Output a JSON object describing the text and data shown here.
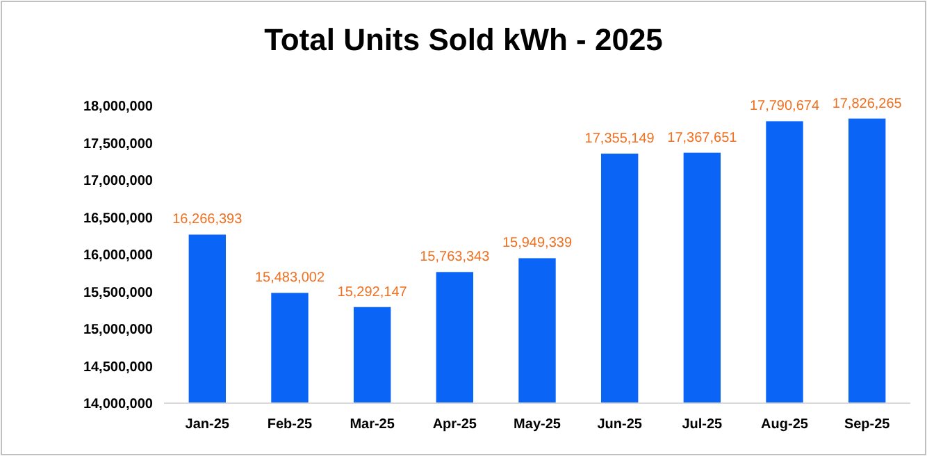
{
  "chart_data": {
    "type": "bar",
    "title": "Total Units Sold kWh - 2025",
    "categories": [
      "Jan-25",
      "Feb-25",
      "Mar-25",
      "Apr-25",
      "May-25",
      "Jun-25",
      "Jul-25",
      "Aug-25",
      "Sep-25"
    ],
    "values": [
      16266393,
      15483002,
      15292147,
      15763343,
      15949339,
      17355149,
      17367651,
      17790674,
      17826265
    ],
    "value_labels": [
      "16,266,393",
      "15,483,002",
      "15,292,147",
      "15,763,343",
      "15,949,339",
      "17,355,149",
      "17,367,651",
      "17,790,674",
      "17,826,265"
    ],
    "color": "#0a64f5",
    "ylim": [
      14000000,
      18000000
    ],
    "yticks": [
      {
        "value": 14000000,
        "label": "14,000,000"
      },
      {
        "value": 14500000,
        "label": "14,500,000"
      },
      {
        "value": 15000000,
        "label": "15,000,000"
      },
      {
        "value": 15500000,
        "label": "15,500,000"
      },
      {
        "value": 16000000,
        "label": "16,000,000"
      },
      {
        "value": 16500000,
        "label": "16,500,000"
      },
      {
        "value": 17000000,
        "label": "17,000,000"
      },
      {
        "value": 17500000,
        "label": "17,500,000"
      },
      {
        "value": 18000000,
        "label": "18,000,000"
      }
    ]
  }
}
